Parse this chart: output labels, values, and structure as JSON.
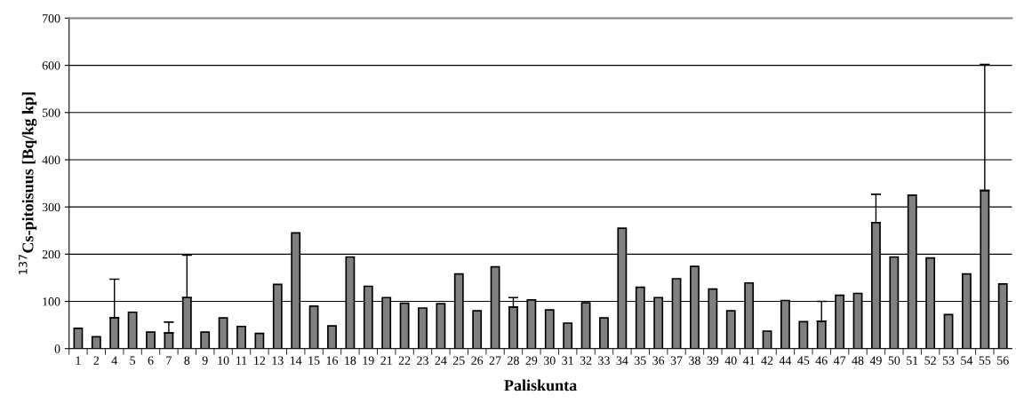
{
  "chart_data": {
    "type": "bar",
    "xlabel": "Paliskunta",
    "ylabel": "$^{137}$Cs-pitoisuus [Bq/kg kp]",
    "categories": [
      "1",
      "2",
      "4",
      "5",
      "6",
      "7",
      "8",
      "9",
      "10",
      "11",
      "12",
      "13",
      "14",
      "15",
      "16",
      "18",
      "19",
      "21",
      "22",
      "23",
      "24",
      "25",
      "26",
      "27",
      "28",
      "29",
      "30",
      "31",
      "32",
      "33",
      "34",
      "35",
      "36",
      "37",
      "38",
      "39",
      "40",
      "41",
      "42",
      "44",
      "45",
      "46",
      "47",
      "48",
      "49",
      "50",
      "51",
      "52",
      "53",
      "54",
      "55",
      "56"
    ],
    "values": [
      43,
      25,
      65,
      77,
      35,
      33,
      108,
      35,
      65,
      47,
      32,
      136,
      245,
      90,
      48,
      194,
      132,
      108,
      96,
      86,
      95,
      158,
      80,
      173,
      88,
      103,
      82,
      54,
      97,
      65,
      255,
      130,
      108,
      148,
      174,
      126,
      80,
      139,
      37,
      102,
      57,
      58,
      113,
      117,
      267,
      194,
      325,
      192,
      72,
      158,
      335,
      137
    ],
    "errors": [
      null,
      null,
      [
        65,
        147
      ],
      null,
      null,
      [
        33,
        56
      ],
      [
        108,
        198
      ],
      null,
      null,
      null,
      null,
      null,
      null,
      null,
      null,
      null,
      null,
      null,
      null,
      null,
      null,
      null,
      null,
      null,
      [
        88,
        108
      ],
      null,
      null,
      null,
      null,
      null,
      null,
      null,
      null,
      null,
      null,
      null,
      null,
      null,
      null,
      null,
      null,
      [
        58,
        100
      ],
      null,
      null,
      [
        267,
        327
      ],
      null,
      null,
      null,
      null,
      null,
      [
        335,
        602
      ],
      null
    ],
    "color": "#808080",
    "ylim": [
      0,
      700
    ],
    "yticks": [
      0,
      100,
      200,
      300,
      400,
      500,
      600,
      700
    ],
    "grid": "y"
  }
}
